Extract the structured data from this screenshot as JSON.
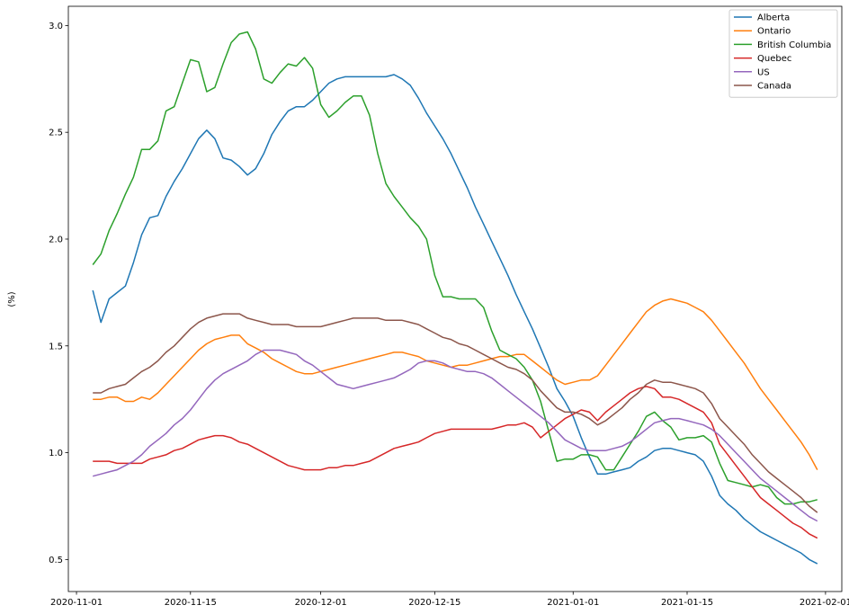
{
  "chart_data": {
    "type": "line",
    "title": "",
    "xlabel": "",
    "ylabel": "(%)",
    "xlim": [
      "2020-10-31",
      "2021-02-03"
    ],
    "ylim": [
      0.35,
      3.09
    ],
    "xticks": [
      "2020-11-01",
      "2020-11-15",
      "2020-12-01",
      "2020-12-15",
      "2021-01-01",
      "2021-01-15",
      "2021-02-01"
    ],
    "yticks": [
      "0.5",
      "1.0",
      "1.5",
      "2.0",
      "2.5",
      "3.0"
    ],
    "grid": false,
    "legend_position": "top-right",
    "colors": {
      "Alberta": "#1f77b4",
      "Ontario": "#ff7f0e",
      "British Columbia": "#2ca02c",
      "Quebec": "#d62728",
      "US": "#9467bd",
      "Canada": "#8c564b"
    },
    "x": [
      "2020-11-03",
      "2020-11-04",
      "2020-11-05",
      "2020-11-06",
      "2020-11-07",
      "2020-11-08",
      "2020-11-09",
      "2020-11-10",
      "2020-11-11",
      "2020-11-12",
      "2020-11-13",
      "2020-11-14",
      "2020-11-15",
      "2020-11-16",
      "2020-11-17",
      "2020-11-18",
      "2020-11-19",
      "2020-11-20",
      "2020-11-21",
      "2020-11-22",
      "2020-11-23",
      "2020-11-24",
      "2020-11-25",
      "2020-11-26",
      "2020-11-27",
      "2020-11-28",
      "2020-11-29",
      "2020-11-30",
      "2020-12-01",
      "2020-12-02",
      "2020-12-03",
      "2020-12-04",
      "2020-12-05",
      "2020-12-06",
      "2020-12-07",
      "2020-12-08",
      "2020-12-09",
      "2020-12-10",
      "2020-12-11",
      "2020-12-12",
      "2020-12-13",
      "2020-12-14",
      "2020-12-15",
      "2020-12-16",
      "2020-12-17",
      "2020-12-18",
      "2020-12-19",
      "2020-12-20",
      "2020-12-21",
      "2020-12-22",
      "2020-12-23",
      "2020-12-24",
      "2020-12-25",
      "2020-12-26",
      "2020-12-27",
      "2020-12-28",
      "2020-12-29",
      "2020-12-30",
      "2020-12-31",
      "2021-01-01",
      "2021-01-02",
      "2021-01-03",
      "2021-01-04",
      "2021-01-05",
      "2021-01-06",
      "2021-01-07",
      "2021-01-08",
      "2021-01-09",
      "2021-01-10",
      "2021-01-11",
      "2021-01-12",
      "2021-01-13",
      "2021-01-14",
      "2021-01-15",
      "2021-01-16",
      "2021-01-17",
      "2021-01-18",
      "2021-01-19",
      "2021-01-20",
      "2021-01-21",
      "2021-01-22",
      "2021-01-23",
      "2021-01-24",
      "2021-01-25",
      "2021-01-26",
      "2021-01-27",
      "2021-01-28",
      "2021-01-29",
      "2021-01-30",
      "2021-01-31"
    ],
    "series": [
      {
        "name": "Alberta",
        "values": [
          1.76,
          1.61,
          1.72,
          1.75,
          1.78,
          1.89,
          2.02,
          2.1,
          2.11,
          2.2,
          2.27,
          2.33,
          2.4,
          2.47,
          2.51,
          2.47,
          2.38,
          2.37,
          2.34,
          2.3,
          2.33,
          2.4,
          2.49,
          2.55,
          2.6,
          2.62,
          2.62,
          2.65,
          2.69,
          2.73,
          2.75,
          2.76,
          2.76,
          2.76,
          2.76,
          2.76,
          2.76,
          2.77,
          2.75,
          2.72,
          2.66,
          2.59,
          2.53,
          2.47,
          2.4,
          2.32,
          2.24,
          2.15,
          2.07,
          1.99,
          1.91,
          1.83,
          1.74,
          1.66,
          1.58,
          1.49,
          1.4,
          1.3,
          1.24,
          1.17,
          1.07,
          0.98,
          0.9,
          0.9,
          0.91,
          0.92,
          0.93,
          0.96,
          0.98,
          1.01,
          1.02,
          1.02,
          1.01,
          1.0,
          0.99,
          0.96,
          0.89,
          0.8,
          0.76,
          0.73,
          0.69,
          0.66,
          0.63,
          0.61,
          0.59,
          0.57,
          0.55,
          0.53,
          0.5,
          0.48
        ]
      },
      {
        "name": "Ontario",
        "values": [
          1.25,
          1.25,
          1.26,
          1.26,
          1.24,
          1.24,
          1.26,
          1.25,
          1.28,
          1.32,
          1.36,
          1.4,
          1.44,
          1.48,
          1.51,
          1.53,
          1.54,
          1.55,
          1.55,
          1.51,
          1.49,
          1.47,
          1.44,
          1.42,
          1.4,
          1.38,
          1.37,
          1.37,
          1.38,
          1.39,
          1.4,
          1.41,
          1.42,
          1.43,
          1.44,
          1.45,
          1.46,
          1.47,
          1.47,
          1.46,
          1.45,
          1.43,
          1.42,
          1.41,
          1.4,
          1.41,
          1.41,
          1.42,
          1.43,
          1.44,
          1.45,
          1.45,
          1.46,
          1.46,
          1.43,
          1.4,
          1.37,
          1.34,
          1.32,
          1.33,
          1.34,
          1.34,
          1.36,
          1.41,
          1.46,
          1.51,
          1.56,
          1.61,
          1.66,
          1.69,
          1.71,
          1.72,
          1.71,
          1.7,
          1.68,
          1.66,
          1.62,
          1.57,
          1.52,
          1.47,
          1.42,
          1.36,
          1.3,
          1.25,
          1.2,
          1.15,
          1.1,
          1.05,
          0.99,
          0.92
        ]
      },
      {
        "name": "British Columbia",
        "values": [
          1.88,
          1.93,
          2.04,
          2.12,
          2.21,
          2.29,
          2.42,
          2.42,
          2.46,
          2.6,
          2.62,
          2.73,
          2.84,
          2.83,
          2.69,
          2.71,
          2.82,
          2.92,
          2.96,
          2.97,
          2.89,
          2.75,
          2.73,
          2.78,
          2.82,
          2.81,
          2.85,
          2.8,
          2.63,
          2.57,
          2.6,
          2.64,
          2.67,
          2.67,
          2.58,
          2.4,
          2.26,
          2.2,
          2.15,
          2.1,
          2.06,
          2.0,
          1.83,
          1.73,
          1.73,
          1.72,
          1.72,
          1.72,
          1.68,
          1.57,
          1.48,
          1.46,
          1.44,
          1.4,
          1.34,
          1.24,
          1.1,
          0.96,
          0.97,
          0.97,
          0.99,
          0.99,
          0.98,
          0.92,
          0.92,
          0.98,
          1.04,
          1.1,
          1.17,
          1.19,
          1.15,
          1.12,
          1.06,
          1.07,
          1.07,
          1.08,
          1.05,
          0.95,
          0.87,
          0.86,
          0.85,
          0.84,
          0.85,
          0.84,
          0.79,
          0.76,
          0.76,
          0.77,
          0.77,
          0.78
        ]
      },
      {
        "name": "Quebec",
        "values": [
          0.96,
          0.96,
          0.96,
          0.95,
          0.95,
          0.95,
          0.95,
          0.97,
          0.98,
          0.99,
          1.01,
          1.02,
          1.04,
          1.06,
          1.07,
          1.08,
          1.08,
          1.07,
          1.05,
          1.04,
          1.02,
          1.0,
          0.98,
          0.96,
          0.94,
          0.93,
          0.92,
          0.92,
          0.92,
          0.93,
          0.93,
          0.94,
          0.94,
          0.95,
          0.96,
          0.98,
          1.0,
          1.02,
          1.03,
          1.04,
          1.05,
          1.07,
          1.09,
          1.1,
          1.11,
          1.11,
          1.11,
          1.11,
          1.11,
          1.11,
          1.12,
          1.13,
          1.13,
          1.14,
          1.12,
          1.07,
          1.1,
          1.13,
          1.16,
          1.18,
          1.2,
          1.19,
          1.15,
          1.19,
          1.22,
          1.25,
          1.28,
          1.3,
          1.31,
          1.3,
          1.26,
          1.26,
          1.25,
          1.23,
          1.21,
          1.19,
          1.14,
          1.04,
          0.99,
          0.94,
          0.89,
          0.84,
          0.79,
          0.76,
          0.73,
          0.7,
          0.67,
          0.65,
          0.62,
          0.6
        ]
      },
      {
        "name": "US",
        "values": [
          0.89,
          0.9,
          0.91,
          0.92,
          0.94,
          0.96,
          0.99,
          1.03,
          1.06,
          1.09,
          1.13,
          1.16,
          1.2,
          1.25,
          1.3,
          1.34,
          1.37,
          1.39,
          1.41,
          1.43,
          1.46,
          1.48,
          1.48,
          1.48,
          1.47,
          1.46,
          1.43,
          1.41,
          1.38,
          1.35,
          1.32,
          1.31,
          1.3,
          1.31,
          1.32,
          1.33,
          1.34,
          1.35,
          1.37,
          1.39,
          1.42,
          1.43,
          1.43,
          1.42,
          1.4,
          1.39,
          1.38,
          1.38,
          1.37,
          1.35,
          1.32,
          1.29,
          1.26,
          1.23,
          1.2,
          1.17,
          1.14,
          1.1,
          1.06,
          1.04,
          1.02,
          1.01,
          1.01,
          1.01,
          1.02,
          1.03,
          1.05,
          1.08,
          1.11,
          1.14,
          1.15,
          1.16,
          1.16,
          1.15,
          1.14,
          1.13,
          1.11,
          1.08,
          1.04,
          1.0,
          0.96,
          0.92,
          0.88,
          0.85,
          0.82,
          0.79,
          0.76,
          0.73,
          0.7,
          0.68
        ]
      },
      {
        "name": "Canada",
        "values": [
          1.28,
          1.28,
          1.3,
          1.31,
          1.32,
          1.35,
          1.38,
          1.4,
          1.43,
          1.47,
          1.5,
          1.54,
          1.58,
          1.61,
          1.63,
          1.64,
          1.65,
          1.65,
          1.65,
          1.63,
          1.62,
          1.61,
          1.6,
          1.6,
          1.6,
          1.59,
          1.59,
          1.59,
          1.59,
          1.6,
          1.61,
          1.62,
          1.63,
          1.63,
          1.63,
          1.63,
          1.62,
          1.62,
          1.62,
          1.61,
          1.6,
          1.58,
          1.56,
          1.54,
          1.53,
          1.51,
          1.5,
          1.48,
          1.46,
          1.44,
          1.42,
          1.4,
          1.39,
          1.37,
          1.34,
          1.29,
          1.25,
          1.21,
          1.19,
          1.19,
          1.18,
          1.16,
          1.13,
          1.15,
          1.18,
          1.21,
          1.25,
          1.28,
          1.32,
          1.34,
          1.33,
          1.33,
          1.32,
          1.31,
          1.3,
          1.28,
          1.23,
          1.16,
          1.12,
          1.08,
          1.04,
          0.99,
          0.95,
          0.91,
          0.88,
          0.85,
          0.82,
          0.79,
          0.75,
          0.72
        ]
      }
    ]
  }
}
